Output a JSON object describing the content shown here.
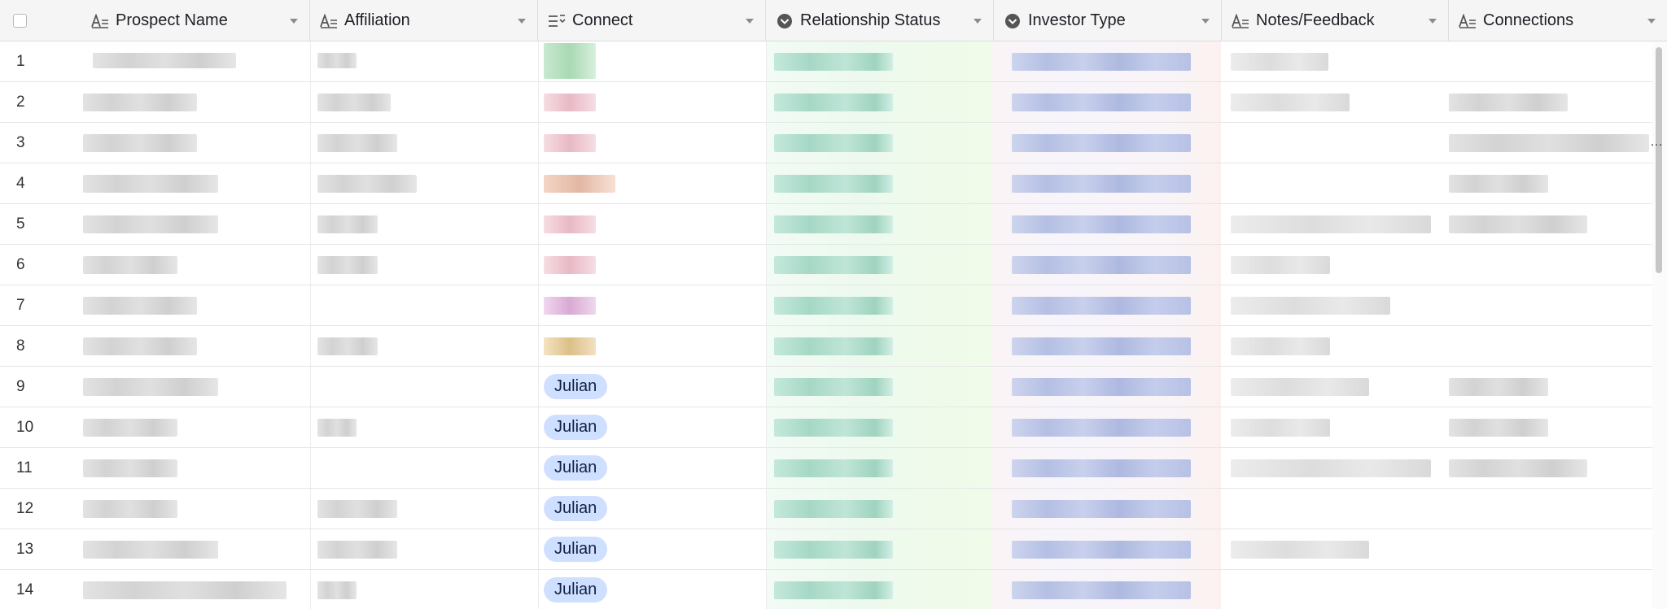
{
  "columns": [
    {
      "key": "prospect_name",
      "label": "Prospect Name",
      "icon": "long-text-icon"
    },
    {
      "key": "affiliation",
      "label": "Affiliation",
      "icon": "long-text-icon"
    },
    {
      "key": "connect",
      "label": "Connect",
      "icon": "multi-select-icon"
    },
    {
      "key": "relationship_status",
      "label": "Relationship Status",
      "icon": "single-select-icon"
    },
    {
      "key": "investor_type",
      "label": "Investor Type",
      "icon": "single-select-icon"
    },
    {
      "key": "notes_feedback",
      "label": "Notes/Feedback",
      "icon": "long-text-icon"
    },
    {
      "key": "connections",
      "label": "Connections",
      "icon": "long-text-icon"
    }
  ],
  "rows": [
    {
      "num": "1",
      "connect": ""
    },
    {
      "num": "2",
      "connect": ""
    },
    {
      "num": "3",
      "connect": ""
    },
    {
      "num": "4",
      "connect": ""
    },
    {
      "num": "5",
      "connect": ""
    },
    {
      "num": "6",
      "connect": ""
    },
    {
      "num": "7",
      "connect": ""
    },
    {
      "num": "8",
      "connect": ""
    },
    {
      "num": "9",
      "connect": "Julian"
    },
    {
      "num": "10",
      "connect": "Julian"
    },
    {
      "num": "11",
      "connect": "Julian"
    },
    {
      "num": "12",
      "connect": "Julian"
    },
    {
      "num": "13",
      "connect": "Julian"
    },
    {
      "num": "14",
      "connect": "Julian"
    }
  ],
  "colors": {
    "pill_bg": "#cfdfff",
    "header_bg": "#f5f5f5",
    "relationship_tint": "#a6d8c6",
    "investor_tint": "#b4bfe3"
  }
}
